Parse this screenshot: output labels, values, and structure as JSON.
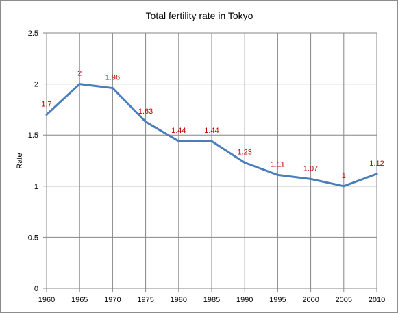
{
  "chart_data": {
    "type": "line",
    "title": "Total fertility rate in Tokyo",
    "xlabel": "",
    "ylabel": "Rate",
    "x": [
      "1960",
      "1965",
      "1970",
      "1975",
      "1980",
      "1985",
      "1990",
      "1995",
      "2000",
      "2005",
      "2010"
    ],
    "series": [
      {
        "values": [
          1.7,
          2,
          1.96,
          1.63,
          1.44,
          1.44,
          1.23,
          1.11,
          1.07,
          1,
          1.12
        ],
        "labels": [
          "1.7",
          "2",
          "1.96",
          "1.63",
          "1.44",
          "1.44",
          "1.23",
          "1.11",
          "1.07",
          "1",
          "1.12"
        ],
        "color": "#4a7ebb"
      }
    ],
    "ylim": [
      0,
      2.5
    ],
    "yticks": [
      "0",
      "0.5",
      "1",
      "1.5",
      "2",
      "2.5"
    ],
    "grid": true,
    "label_color": "#c00000",
    "grid_color": "#868686"
  }
}
